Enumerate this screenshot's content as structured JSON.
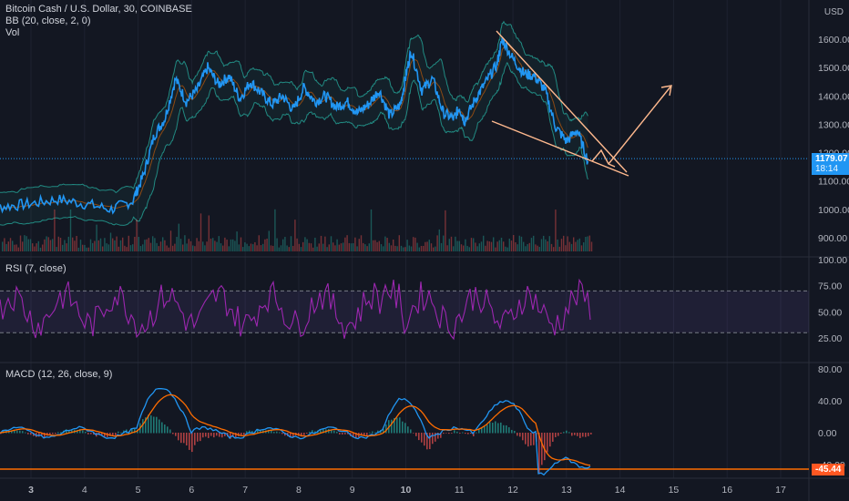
{
  "legend": {
    "symbol": "Bitcoin Cash / U.S. Dollar, 30, COINBASE",
    "bb": "BB (20, close, 2, 0)",
    "vol": "Vol",
    "rsi": "RSI (7, close)",
    "macd": "MACD (12, 26, close, 9)"
  },
  "currency": "USD",
  "price_axis": [
    "1600.00",
    "1500.00",
    "1400.00",
    "1300.00",
    "1200.00",
    "1100.00",
    "1000.00",
    "900.00"
  ],
  "rsi_axis": [
    "100.00",
    "75.00",
    "50.00",
    "25.00"
  ],
  "macd_axis": [
    "80.00",
    "40.00",
    "0.00",
    "-40.00"
  ],
  "time_axis": [
    "3",
    "4",
    "5",
    "6",
    "7",
    "8",
    "9",
    "10",
    "11",
    "12",
    "13",
    "14",
    "15",
    "16",
    "17"
  ],
  "last_price": {
    "value": "1179.07",
    "countdown": "18:14"
  },
  "macd_last": "-45.44",
  "colors": {
    "background": "#131722",
    "price_line": "#2196f3",
    "bb_band": "#26a69a",
    "bb_basis": "#ef6c00",
    "rsi": "#9c27b0",
    "macd": "#2196f3",
    "signal": "#ff6d00",
    "up": "#26a69a",
    "down": "#ef5350",
    "drawing": "#ffb98e",
    "last_price_badge": "#2196f3",
    "macd_badge": "#ff5722"
  },
  "chart_data": {
    "type": "line",
    "title": "Bitcoin Cash / U.S. Dollar, 30, COINBASE",
    "x_labels": [
      "3",
      "4",
      "5",
      "6",
      "7",
      "8",
      "9",
      "10",
      "11",
      "12",
      "13",
      "14",
      "15",
      "16",
      "17"
    ],
    "ylim": [
      860,
      1680
    ],
    "series": [
      {
        "name": "Bitcoin Cash / U.S. Dollar",
        "x": [
          2.0,
          2.5,
          3.0,
          3.5,
          4.0,
          4.5,
          4.9,
          5.1,
          5.3,
          5.5,
          5.7,
          5.9,
          6.1,
          6.3,
          6.5,
          6.7,
          6.9,
          7.1,
          7.3,
          7.5,
          7.7,
          7.9,
          8.1,
          8.3,
          8.5,
          8.7,
          8.9,
          9.1,
          9.3,
          9.5,
          9.7,
          9.9,
          10.0,
          10.1,
          10.3,
          10.5,
          10.7,
          10.9,
          11.0,
          11.1,
          11.3,
          11.5,
          11.7,
          11.8,
          12.0,
          12.2,
          12.4,
          12.6,
          12.8,
          13.0,
          13.2,
          13.4
        ],
        "values": [
          1000,
          1010,
          1020,
          1035,
          1020,
          1000,
          1030,
          1120,
          1260,
          1320,
          1460,
          1380,
          1420,
          1500,
          1440,
          1470,
          1390,
          1450,
          1410,
          1370,
          1400,
          1350,
          1430,
          1380,
          1400,
          1360,
          1380,
          1340,
          1370,
          1420,
          1330,
          1370,
          1470,
          1560,
          1420,
          1460,
          1340,
          1320,
          1360,
          1310,
          1390,
          1450,
          1510,
          1600,
          1530,
          1480,
          1470,
          1420,
          1290,
          1240,
          1280,
          1170
        ]
      }
    ],
    "rsi": {
      "name": "RSI (7, close)",
      "levels": [
        70,
        30
      ]
    },
    "macd": {
      "name": "MACD (12, 26, close, 9)",
      "last": -45.44
    },
    "annotations": [
      "falling wedge trendlines",
      "breakout arrow"
    ]
  }
}
